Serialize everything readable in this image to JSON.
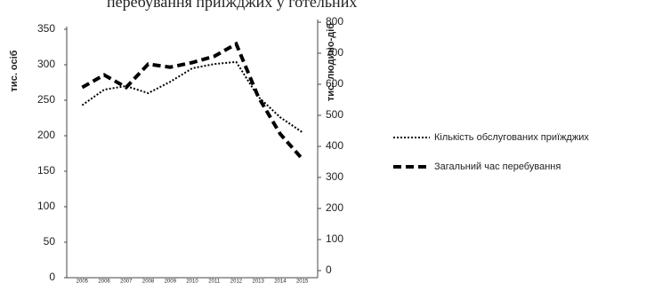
{
  "chart_data": {
    "type": "line",
    "title": "перебування приїжджих у готельних",
    "ylabel": "тис. осіб",
    "y2label": "тис. людино-діб",
    "categories": [
      "2005",
      "2006",
      "2007",
      "2008",
      "2009",
      "2010",
      "2011",
      "2012",
      "2013",
      "2014",
      "2015"
    ],
    "series": [
      {
        "name": "Кількість обслугованих приїжджих",
        "color": "#000000",
        "style": "dotted",
        "values": [
          243,
          265,
          270,
          260,
          276,
          295,
          301,
          304,
          255,
          226,
          205
        ]
      },
      {
        "name": "Загальний час перебування",
        "color": "#000000",
        "style": "dashed",
        "axis": "y2",
        "values": [
          590,
          630,
          590,
          665,
          655,
          670,
          690,
          730,
          560,
          440,
          360
        ]
      }
    ],
    "ylim": [
      0,
      350
    ],
    "yticks": [
      0,
      50,
      100,
      150,
      200,
      250,
      300,
      350
    ],
    "y2lim": [
      0,
      800
    ],
    "y2ticks": [
      0,
      100,
      200,
      300,
      400,
      500,
      600,
      700,
      800
    ],
    "grid": false
  }
}
